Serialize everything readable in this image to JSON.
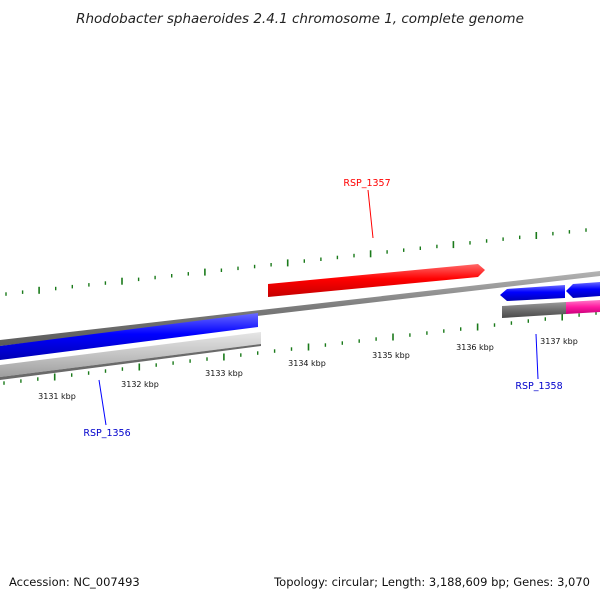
{
  "title": "Rhodobacter sphaeroides 2.4.1 chromosome 1, complete genome",
  "footer": {
    "accession": "Accession: NC_007493",
    "summary": "Topology: circular; Length: 3,188,609 bp; Genes: 3,070"
  },
  "scale_labels": [
    "3131 kbp",
    "3132 kbp",
    "3133 kbp",
    "3134 kbp",
    "3135 kbp",
    "3136 kbp",
    "3137 kbp"
  ],
  "genes": {
    "rsp_1357": {
      "label": "RSP_1357",
      "color": "#ff0000",
      "strand": "forward"
    },
    "rsp_1356": {
      "label": "RSP_1356",
      "color": "#0000ff",
      "strand": "reverse"
    },
    "rsp_1358": {
      "label": "RSP_1358",
      "color": "#0000ff",
      "strand": "reverse"
    }
  },
  "colors": {
    "backbone": "#8a8a8a",
    "forward_gene": "#ff0000",
    "reverse_gene": "#0000ff",
    "feature_light": "#c8c8c8",
    "feature_dark": "#707070",
    "feature_pink": "#ff1aa0",
    "tick": "#1a7a1a"
  }
}
